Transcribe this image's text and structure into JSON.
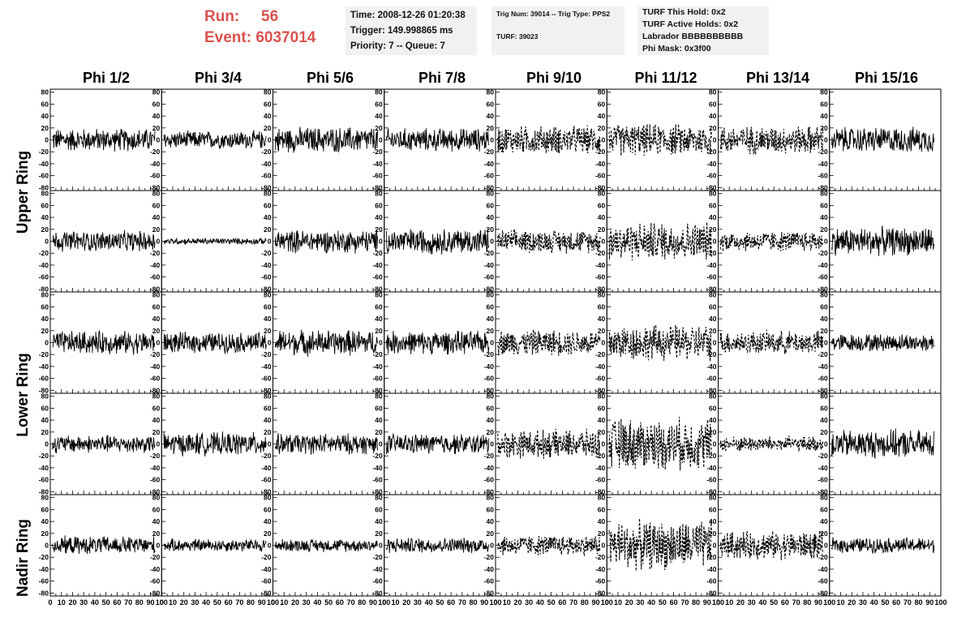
{
  "header": {
    "run_label": "Run:",
    "run_value": "56",
    "event_label": "Event:",
    "event_value": "6037014"
  },
  "info_time": {
    "time": "Time: 2008-12-26 01:20:38",
    "trigger": "Trigger: 149.998865 ms",
    "priority": "Priority: 7 -- Queue: 7"
  },
  "info_trig": {
    "line1": "Trig Num: 39014 -- Trig Type: PPS2",
    "line2": "TURF: 39023"
  },
  "info_turf": {
    "this_hold": "TURF This Hold: 0x2",
    "active_holds": "TURF Active Holds: 0x2",
    "labrador": "Labrador BBBBBBBBBB",
    "phi_mask": "Phi Mask: 0x3f00"
  },
  "columns": [
    "Phi 1/2",
    "Phi 3/4",
    "Phi 5/6",
    "Phi 7/8",
    "Phi 9/10",
    "Phi 11/12",
    "Phi 13/14",
    "Phi 15/16"
  ],
  "row_labels": [
    "Upper Ring",
    "Lower Ring",
    "Nadir Ring"
  ],
  "colors": {
    "run_text": "#d9534f",
    "info_bg": "#f1f1f1",
    "trace": "#000000"
  },
  "chart_data": {
    "type": "line",
    "grid_rows": 5,
    "grid_cols": 8,
    "yticks": [
      -80,
      -60,
      -40,
      -20,
      0,
      20,
      40,
      60,
      80
    ],
    "ylim": [
      -85,
      85
    ],
    "xticks": [
      0,
      10,
      20,
      30,
      40,
      50,
      60,
      70,
      80,
      90,
      100
    ],
    "xlim": [
      0,
      100
    ],
    "dashed_columns": [
      4,
      5,
      6
    ],
    "amplitudes": [
      [
        18,
        14,
        20,
        18,
        22,
        25,
        22,
        20
      ],
      [
        16,
        5,
        18,
        20,
        18,
        30,
        16,
        22
      ],
      [
        18,
        16,
        20,
        18,
        20,
        28,
        18,
        14
      ],
      [
        14,
        18,
        16,
        16,
        22,
        40,
        12,
        22
      ],
      [
        14,
        10,
        10,
        12,
        16,
        38,
        22,
        12
      ]
    ]
  }
}
